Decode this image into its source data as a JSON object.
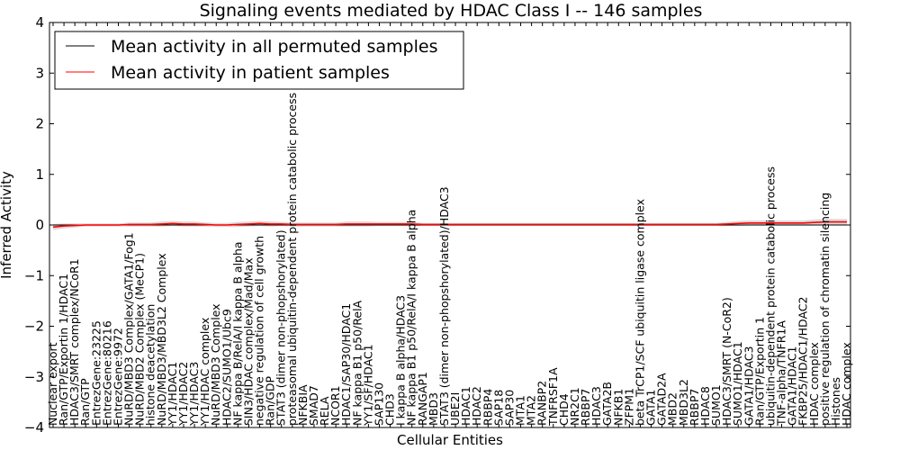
{
  "chart_data": {
    "type": "line",
    "title": "Signaling events mediated by HDAC Class I -- 146 samples",
    "xlabel": "Cellular Entities",
    "ylabel": "Inferred Activity",
    "ylim": [
      -4,
      4
    ],
    "yticks": [
      -4,
      -3,
      -2,
      -1,
      0,
      1,
      2,
      3,
      4
    ],
    "legend": {
      "placement": "top-left",
      "entries": [
        {
          "name": "Mean activity in all permuted samples",
          "color": "#000000"
        },
        {
          "name": "Mean activity in patient samples",
          "color": "#ff0000"
        }
      ]
    },
    "categories": [
      "Nuclear export",
      "Ran/GTP/Exportin 1/HDAC1",
      "HDAC3/SMRT complex/NCoR1",
      "Ran/GTP",
      "EntrezGene:23225",
      "EntrezGene:80216",
      "EntrezGene:9972",
      "NuRD/MBD3 Complex/GATA1/Fog1",
      "NuRD/MBD2 Complex (MeCP1)",
      "histone deacetylation",
      "NuRD/MBD3/MBD3L2 Complex",
      "YY1/HDAC1",
      "YY1/HDAC2",
      "YY1/HDAC3",
      "YY1/HDAC complex",
      "NuRD/MBD3 Complex",
      "HDAC2/SUMO1/Ubc9",
      "NF kappa B/RelA/I kappa B alpha",
      "SIN3/HDAC complex/Mad/Max",
      "negative regulation of cell growth",
      "Ran/GDP",
      "STAT3 (dimer non-phopshorylated)",
      "proteasomal ubiquitin-dependent protein catabolic process",
      "NFKBIA",
      "SMAD7",
      "RELA",
      "NCOR1",
      "HDAC1/SAP30/HDAC1",
      "NF kappa B1 p50/RelA",
      "YY1/SF/HDAC1",
      "SAP130",
      "CHD3",
      "I kappa B alpha/HDAC3",
      "NF kappa B1 p50/RelA/I kappa B alpha",
      "RANGAP1",
      "MBD3",
      "STAT3 (dimer non-phopshorylated)/HDAC3",
      "UBE2I",
      "HDAC1",
      "HDAC2",
      "RBBP4",
      "SAP18",
      "SAP30",
      "MTA1",
      "MTA2",
      "RANBP2",
      "TNFRSF1A",
      "CHD4",
      "NR2C1",
      "RBBP7",
      "HDAC3",
      "GATA2B",
      "NFKB1",
      "ZFPM1",
      "beta TrCP1/SCF ubiquitin ligase complex",
      "GATA1",
      "GATAD2A",
      "MBD2",
      "MBD3L2",
      "RBBP7",
      "HDAC8",
      "SUMO1",
      "HDAC3/SMRT (N-CoR2)",
      "SUMO1/HDAC1",
      "GATA1/HDAC3",
      "Ran/GTP/Exportin 1",
      "ubiquitin-dependent protein catabolic process",
      "TNF-alpha/TNFR1A",
      "GATA1/HDAC1",
      "FKBP25/HDAC1/HDAC2",
      "HDAC complex",
      "positive regulation of chromatin silencing",
      "Histones",
      "HDAC complex"
    ],
    "series": [
      {
        "name": "Mean activity in all permuted samples",
        "color": "#000000",
        "values": [
          0,
          0,
          0,
          0,
          0,
          0,
          0,
          0,
          0,
          0,
          0,
          0,
          0,
          0,
          0,
          0,
          0,
          0,
          0,
          0,
          0,
          0,
          0,
          0,
          0,
          0,
          0,
          0,
          0,
          0,
          0,
          0,
          0,
          0,
          0,
          0,
          0,
          0,
          0,
          0,
          0,
          0,
          0,
          0,
          0,
          0,
          0,
          0,
          0,
          0,
          0,
          0,
          0,
          0,
          0,
          0,
          0,
          0,
          0,
          0,
          0,
          0,
          0,
          0,
          0,
          0,
          0,
          0,
          0,
          0,
          0,
          0,
          0,
          0
        ]
      },
      {
        "name": "Mean activity in patient samples",
        "color": "#ff0000",
        "values": [
          -0.04,
          -0.02,
          -0.01,
          0,
          0,
          0,
          0,
          0.01,
          0.01,
          0.01,
          0.02,
          0.03,
          0.02,
          0.02,
          0.01,
          0,
          0,
          0.01,
          0.02,
          0.03,
          0.02,
          0.02,
          0.01,
          0.01,
          0.01,
          0.01,
          0.01,
          0.02,
          0.02,
          0.02,
          0.02,
          0.02,
          0.02,
          0.02,
          0.01,
          0.01,
          0.01,
          0.01,
          0.01,
          0.01,
          0.01,
          0.01,
          0.01,
          0.01,
          0.01,
          0.01,
          0.01,
          0.01,
          0.01,
          0.01,
          0.01,
          0.01,
          0.01,
          0.01,
          0.01,
          0.01,
          0.01,
          0.01,
          0.01,
          0.01,
          0.01,
          0.01,
          0.02,
          0.03,
          0.04,
          0.04,
          0.04,
          0.04,
          0.04,
          0.04,
          0.05,
          0.06,
          0.06,
          0.06
        ]
      }
    ],
    "band_halfwidth": [
      0.06,
      0.05,
      0.04,
      0.03,
      0.03,
      0.03,
      0.03,
      0.04,
      0.04,
      0.04,
      0.05,
      0.05,
      0.05,
      0.05,
      0.04,
      0.04,
      0.04,
      0.05,
      0.05,
      0.05,
      0.05,
      0.04,
      0.04,
      0.04,
      0.04,
      0.04,
      0.04,
      0.05,
      0.05,
      0.05,
      0.04,
      0.04,
      0.04,
      0.04,
      0.03,
      0.03,
      0.03,
      0.03,
      0.03,
      0.03,
      0.03,
      0.03,
      0.03,
      0.03,
      0.03,
      0.03,
      0.03,
      0.03,
      0.03,
      0.03,
      0.03,
      0.03,
      0.03,
      0.03,
      0.03,
      0.03,
      0.03,
      0.03,
      0.03,
      0.03,
      0.03,
      0.03,
      0.04,
      0.05,
      0.05,
      0.05,
      0.05,
      0.05,
      0.05,
      0.05,
      0.06,
      0.06,
      0.06,
      0.06
    ]
  }
}
